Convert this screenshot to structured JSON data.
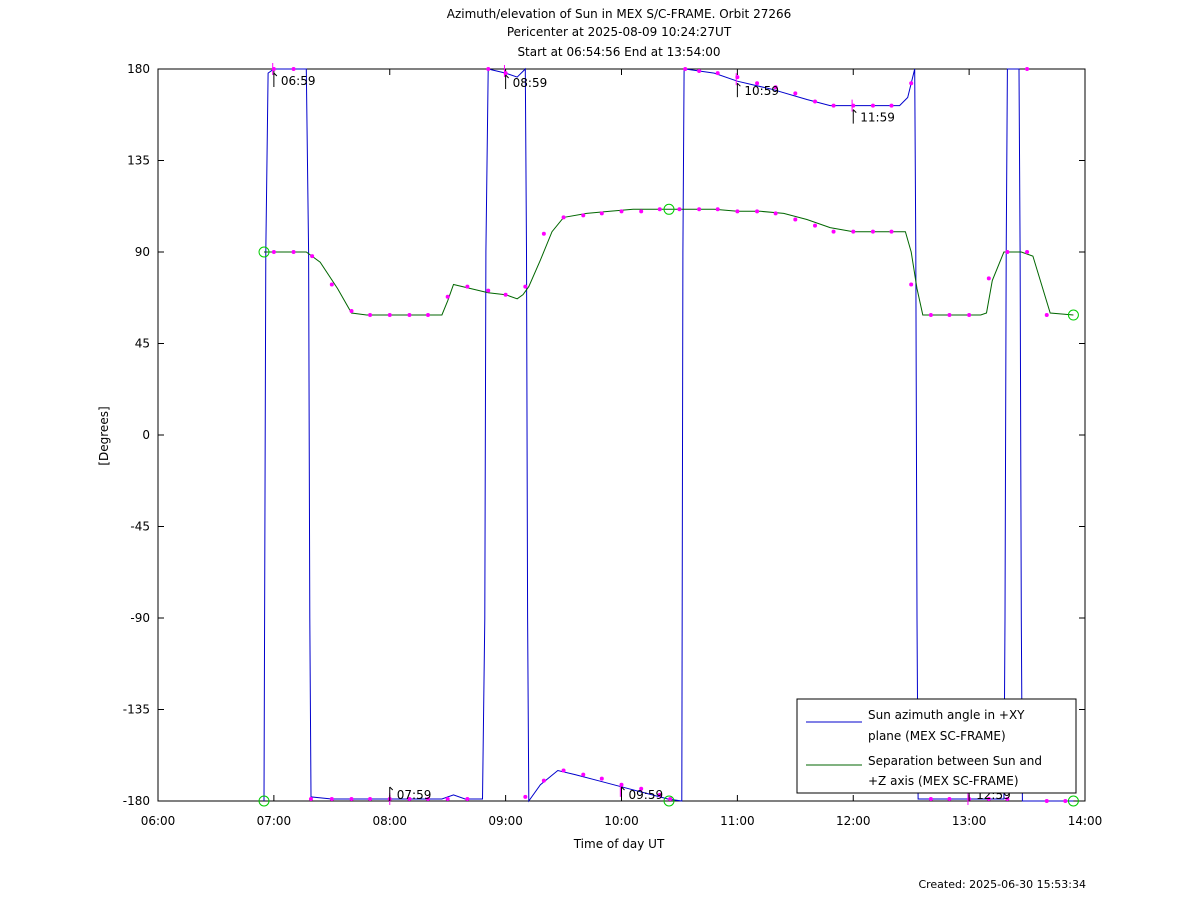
{
  "chart_data": {
    "type": "line",
    "title_lines": [
      "Azimuth/elevation of Sun in MEX S/C-FRAME.  Orbit 27266",
      "Pericenter at 2025-08-09 10:24:27UT",
      "Start at 06:54:56 End at 13:54:00"
    ],
    "xlabel": "Time of day UT",
    "ylabel": "[Degrees]",
    "xlim": [
      6.0,
      14.0
    ],
    "ylim": [
      -180,
      180
    ],
    "x_ticks": [
      {
        "value": 6.0,
        "label": "06:00"
      },
      {
        "value": 7.0,
        "label": "07:00"
      },
      {
        "value": 8.0,
        "label": "08:00"
      },
      {
        "value": 9.0,
        "label": "09:00"
      },
      {
        "value": 10.0,
        "label": "10:00"
      },
      {
        "value": 11.0,
        "label": "11:00"
      },
      {
        "value": 12.0,
        "label": "12:00"
      },
      {
        "value": 13.0,
        "label": "13:00"
      },
      {
        "value": 14.0,
        "label": "14:00"
      }
    ],
    "y_ticks": [
      {
        "value": 180,
        "label": "180"
      },
      {
        "value": 135,
        "label": "135"
      },
      {
        "value": 90,
        "label": "90"
      },
      {
        "value": 45,
        "label": "45"
      },
      {
        "value": 0,
        "label": "0"
      },
      {
        "value": -45,
        "label": "-45"
      },
      {
        "value": -90,
        "label": "-90"
      },
      {
        "value": -135,
        "label": "-135"
      },
      {
        "value": -180,
        "label": "-180"
      }
    ],
    "grid": false,
    "legend_position": "bottom-right",
    "series": [
      {
        "name_lines": [
          "Sun azimuth angle in +XY",
          "plane (MEX SC-FRAME)"
        ],
        "color": "#0000cc",
        "x": [
          6.915,
          6.92,
          6.93,
          6.95,
          7.0,
          7.1,
          7.2,
          7.28,
          7.3,
          7.31,
          7.32,
          7.5,
          7.7,
          7.9,
          8.1,
          8.3,
          8.45,
          8.55,
          8.65,
          8.8,
          8.82,
          8.83,
          8.85,
          9.0,
          9.1,
          9.17,
          9.18,
          9.19,
          9.2,
          9.3,
          9.45,
          9.6,
          9.8,
          10.0,
          10.2,
          10.4,
          10.52,
          10.53,
          10.54,
          10.55,
          10.8,
          11.0,
          11.3,
          11.6,
          11.8,
          12.0,
          12.2,
          12.4,
          12.47,
          12.53,
          12.54,
          12.55,
          12.56,
          13.0,
          13.2,
          13.3,
          13.31,
          13.32,
          13.33,
          13.43,
          13.44,
          13.45,
          13.46,
          13.7,
          13.9
        ],
        "y": [
          -180,
          -90,
          90,
          178,
          180,
          180,
          180,
          180,
          90,
          -90,
          -178,
          -179,
          -179,
          -179,
          -179,
          -179,
          -179,
          -177,
          -179,
          -179,
          -90,
          90,
          180,
          178,
          176,
          180,
          90,
          -90,
          -180,
          -172,
          -165,
          -167,
          -170,
          -173,
          -176,
          -179,
          -180,
          90,
          180,
          180,
          178,
          174,
          170,
          165,
          162,
          162,
          162,
          162,
          166,
          180,
          90,
          -90,
          -179,
          -179,
          -179,
          -179,
          -90,
          90,
          180,
          180,
          90,
          -90,
          -180,
          -180,
          -180
        ]
      },
      {
        "name_lines": [
          "Separation between Sun and",
          "+Z axis (MEX SC-FRAME)"
        ],
        "color": "#006600",
        "x": [
          6.915,
          7.0,
          7.28,
          7.4,
          7.55,
          7.67,
          7.8,
          8.0,
          8.2,
          8.45,
          8.5,
          8.55,
          8.7,
          8.85,
          9.0,
          9.1,
          9.15,
          9.2,
          9.3,
          9.4,
          9.5,
          9.7,
          9.9,
          10.1,
          10.3,
          10.45,
          10.6,
          10.8,
          11.0,
          11.2,
          11.4,
          11.6,
          11.8,
          12.0,
          12.2,
          12.4,
          12.45,
          12.5,
          12.55,
          12.6,
          12.8,
          13.0,
          13.1,
          13.15,
          13.2,
          13.3,
          13.4,
          13.45,
          13.55,
          13.7,
          13.9
        ],
        "y": [
          90,
          90,
          90,
          85,
          72,
          60,
          59,
          59,
          59,
          59,
          66,
          74,
          72,
          70,
          69,
          67,
          69,
          73,
          86,
          100,
          107,
          109,
          110,
          111,
          111,
          111,
          111,
          111,
          110,
          110,
          109,
          106,
          102,
          100,
          100,
          100,
          100,
          90,
          72,
          59,
          59,
          59,
          59,
          60,
          76,
          90,
          90,
          90,
          88,
          60,
          59
        ]
      }
    ],
    "markers": {
      "color": "#ff00ff",
      "azimuth_x": [
        7.0,
        7.17,
        7.32,
        7.5,
        7.67,
        7.83,
        8.0,
        8.17,
        8.33,
        8.5,
        8.67,
        8.85,
        9.0,
        9.17,
        9.33,
        9.5,
        9.67,
        9.83,
        10.0,
        10.17,
        10.33,
        10.42,
        10.55,
        10.67,
        10.83,
        11.0,
        11.17,
        11.33,
        11.5,
        11.67,
        11.83,
        12.0,
        12.17,
        12.33,
        12.5,
        12.67,
        12.83,
        13.0,
        13.17,
        13.33,
        13.5,
        13.67,
        13.83
      ],
      "azimuth_y": [
        180,
        180,
        -179,
        -179,
        -179,
        -179,
        -179,
        -179,
        -179,
        -179,
        -179,
        180,
        178,
        -178,
        -170,
        -165,
        -167,
        -169,
        -172,
        -174,
        -177,
        -179,
        180,
        179,
        178,
        176,
        173,
        171,
        168,
        164,
        162,
        162,
        162,
        162,
        173,
        -179,
        -179,
        -179,
        -179,
        -179,
        180,
        -180,
        -180
      ],
      "elev_x": [
        7.0,
        7.17,
        7.33,
        7.5,
        7.67,
        7.83,
        8.0,
        8.17,
        8.33,
        8.5,
        8.67,
        8.85,
        9.0,
        9.17,
        9.33,
        9.5,
        9.67,
        9.83,
        10.0,
        10.17,
        10.33,
        10.5,
        10.67,
        10.83,
        11.0,
        11.17,
        11.33,
        11.5,
        11.67,
        11.83,
        12.0,
        12.17,
        12.33,
        12.5,
        12.67,
        12.83,
        13.0,
        13.17,
        13.33,
        13.5,
        13.67
      ],
      "elev_y": [
        90,
        90,
        88,
        74,
        61,
        59,
        59,
        59,
        59,
        68,
        73,
        71,
        69,
        73,
        99,
        107,
        108,
        109,
        110,
        110,
        111,
        111,
        111,
        111,
        110,
        110,
        109,
        106,
        103,
        100,
        100,
        100,
        100,
        74,
        59,
        59,
        59,
        77,
        90,
        90,
        59
      ],
      "hour_ticks": [
        {
          "x": 6.99,
          "y": 180,
          "dir": "down"
        },
        {
          "x": 8.0,
          "y": -179,
          "dir": "up"
        },
        {
          "x": 8.99,
          "y": 179,
          "dir": "down"
        },
        {
          "x": 9.99,
          "y": -175,
          "dir": "up"
        },
        {
          "x": 10.99,
          "y": 175,
          "dir": "down"
        },
        {
          "x": 11.99,
          "y": 162,
          "dir": "down"
        },
        {
          "x": 12.99,
          "y": -179,
          "dir": "up"
        }
      ],
      "circles": [
        {
          "x": 6.915,
          "y": 90
        },
        {
          "x": 6.915,
          "y": -180
        },
        {
          "x": 10.41,
          "y": 111
        },
        {
          "x": 10.41,
          "y": -180
        },
        {
          "x": 13.9,
          "y": 59
        },
        {
          "x": 13.9,
          "y": -180
        }
      ]
    },
    "annotations": [
      {
        "x": 7.0,
        "y": 180,
        "label": "06:59"
      },
      {
        "x": 8.0,
        "y": -179,
        "label": "07:59"
      },
      {
        "x": 9.0,
        "y": 179,
        "label": "08:59"
      },
      {
        "x": 10.0,
        "y": -175,
        "label": "09:59"
      },
      {
        "x": 11.0,
        "y": 175,
        "label": "10:59"
      },
      {
        "x": 12.0,
        "y": 162,
        "label": "11:59"
      },
      {
        "x": 13.0,
        "y": -179,
        "label": "12:59"
      }
    ],
    "created": "Created: 2025-06-30 15:53:34"
  }
}
